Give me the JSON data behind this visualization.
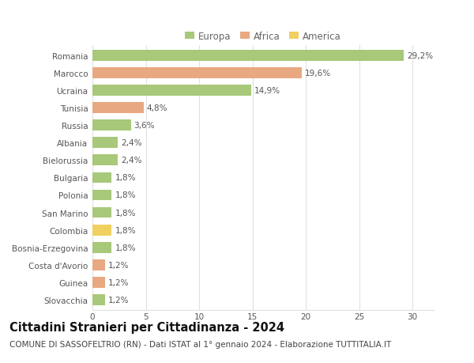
{
  "categories": [
    "Romania",
    "Marocco",
    "Ucraina",
    "Tunisia",
    "Russia",
    "Albania",
    "Bielorussia",
    "Bulgaria",
    "Polonia",
    "San Marino",
    "Colombia",
    "Bosnia-Erzegovina",
    "Costa d'Avorio",
    "Guinea",
    "Slovacchia"
  ],
  "values": [
    29.2,
    19.6,
    14.9,
    4.8,
    3.6,
    2.4,
    2.4,
    1.8,
    1.8,
    1.8,
    1.8,
    1.8,
    1.2,
    1.2,
    1.2
  ],
  "labels": [
    "29,2%",
    "19,6%",
    "14,9%",
    "4,8%",
    "3,6%",
    "2,4%",
    "2,4%",
    "1,8%",
    "1,8%",
    "1,8%",
    "1,8%",
    "1,8%",
    "1,2%",
    "1,2%",
    "1,2%"
  ],
  "colors": [
    "#a8c87a",
    "#e8a882",
    "#a8c87a",
    "#e8a882",
    "#a8c87a",
    "#a8c87a",
    "#a8c87a",
    "#a8c87a",
    "#a8c87a",
    "#a8c87a",
    "#f0d060",
    "#a8c87a",
    "#e8a882",
    "#e8a882",
    "#a8c87a"
  ],
  "continent": [
    "Europa",
    "Africa",
    "Europa",
    "Africa",
    "Europa",
    "Europa",
    "Europa",
    "Europa",
    "Europa",
    "Europa",
    "America",
    "Europa",
    "Africa",
    "Africa",
    "Europa"
  ],
  "legend_colors": {
    "Europa": "#a8c87a",
    "Africa": "#e8a882",
    "America": "#f0d060"
  },
  "title": "Cittadini Stranieri per Cittadinanza - 2024",
  "subtitle": "COMUNE DI SASSOFELTRIO (RN) - Dati ISTAT al 1° gennaio 2024 - Elaborazione TUTTITALIA.IT",
  "xlim": [
    0,
    32
  ],
  "xticks": [
    0,
    5,
    10,
    15,
    20,
    25,
    30
  ],
  "background_color": "#ffffff",
  "plot_bg_color": "#ffffff",
  "grid_color": "#e0e0e0",
  "bar_height": 0.62,
  "title_fontsize": 10.5,
  "subtitle_fontsize": 7.5,
  "label_fontsize": 7.5,
  "tick_fontsize": 7.5,
  "legend_fontsize": 8.5,
  "legend_marker_colors": [
    "#a8c87a",
    "#e8a882",
    "#f0d060"
  ]
}
